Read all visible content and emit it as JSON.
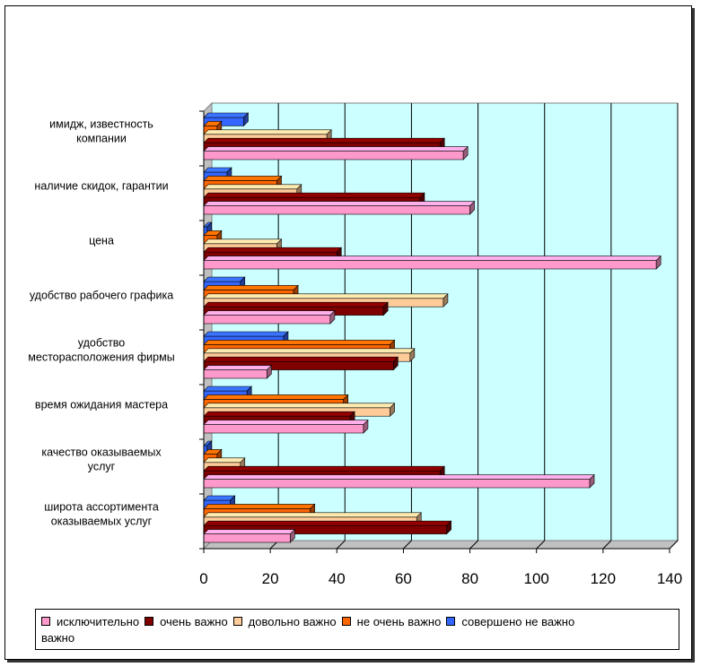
{
  "chart_data": {
    "type": "bar",
    "orientation": "horizontal",
    "categories": [
      [
        "имидж, известность",
        "компании"
      ],
      [
        "наличие скидок, гарантии"
      ],
      [
        "цена"
      ],
      [
        "удобство рабочего графика"
      ],
      [
        "удобство",
        "месторасположения фирмы"
      ],
      [
        "время ожидания мастера"
      ],
      [
        "качество оказываемых",
        "услуг"
      ],
      [
        "широта ассортимента",
        "оказываемых услуг"
      ]
    ],
    "series": [
      {
        "name": "исключительно",
        "color": "#ff99cc",
        "values": [
          78,
          80,
          136,
          38,
          19,
          48,
          116,
          26
        ]
      },
      {
        "name": "очень важно",
        "color": "#800000",
        "values": [
          71,
          65,
          40,
          54,
          57,
          44,
          71,
          73
        ]
      },
      {
        "name": "довольно важно",
        "color": "#ffcc99",
        "values": [
          37,
          28,
          22,
          72,
          62,
          56,
          11,
          64
        ]
      },
      {
        "name": "не очень важно",
        "color": "#ff6600",
        "values": [
          4,
          22,
          4,
          27,
          56,
          42,
          4,
          32
        ]
      },
      {
        "name": "совершено не важно",
        "color": "#3366ff",
        "values": [
          12,
          7,
          1,
          11,
          24,
          13,
          1,
          8
        ]
      }
    ],
    "legend_trailing_text": "важно",
    "xlim": [
      0,
      140
    ],
    "xticks": [
      "0",
      "20",
      "40",
      "60",
      "80",
      "100",
      "120",
      "140"
    ],
    "grid": true,
    "legend": "bottom",
    "background_color": "#ccffff"
  }
}
